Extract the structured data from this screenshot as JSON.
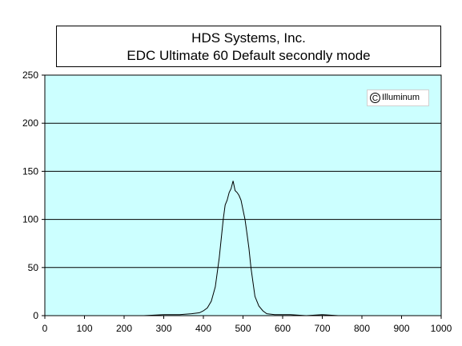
{
  "chart_data": {
    "type": "line",
    "title": "HDS Systems, Inc.",
    "subtitle": "EDC Ultimate 60 Default secondly mode",
    "xlabel": "",
    "ylabel": "",
    "xlim": [
      0,
      1000
    ],
    "ylim": [
      0,
      250
    ],
    "xticks": [
      0,
      100,
      200,
      300,
      400,
      500,
      600,
      700,
      800,
      900,
      1000
    ],
    "yticks": [
      0,
      50,
      100,
      150,
      200,
      250
    ],
    "grid": "horizontal",
    "legend": "none",
    "watermark": "Illuminum",
    "colors": {
      "plot_background": "#ccffff",
      "line": "#000000",
      "grid": "#000000"
    },
    "x": [
      180,
      250,
      300,
      340,
      370,
      390,
      400,
      410,
      420,
      430,
      440,
      445,
      450,
      455,
      460,
      465,
      470,
      475,
      480,
      485,
      490,
      495,
      500,
      505,
      510,
      515,
      520,
      525,
      530,
      540,
      550,
      560,
      580,
      620,
      660,
      700,
      740
    ],
    "values": [
      0,
      0,
      1,
      1,
      2,
      3,
      5,
      8,
      15,
      30,
      60,
      80,
      100,
      115,
      120,
      128,
      132,
      140,
      130,
      128,
      125,
      120,
      110,
      100,
      85,
      70,
      50,
      35,
      20,
      10,
      5,
      2,
      1,
      1,
      0,
      1,
      0
    ]
  }
}
